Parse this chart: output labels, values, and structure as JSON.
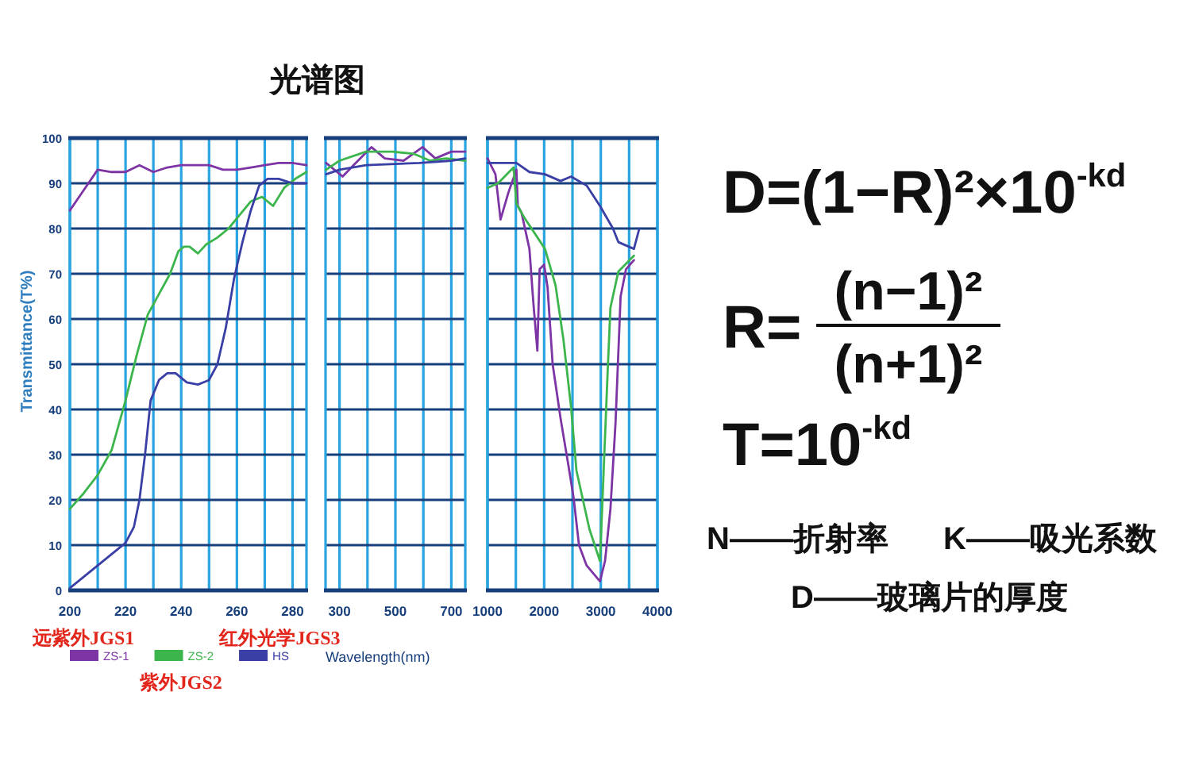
{
  "chart_data": [
    {
      "type": "line",
      "title": "光谱图",
      "ylabel": "Transmittance(T%)",
      "xlim": [
        200,
        285
      ],
      "ylim": [
        0,
        100
      ],
      "xticks": [
        200,
        {
          "value": 210,
          "label": null
        },
        220,
        {
          "value": 230,
          "label": null
        },
        240,
        {
          "value": 250,
          "label": null
        },
        260,
        {
          "value": 270,
          "label": null
        },
        280
      ],
      "yticks": [
        0,
        10,
        20,
        30,
        40,
        50,
        60,
        70,
        80,
        90,
        100
      ],
      "grid": true,
      "legend": "bottom",
      "series": [
        {
          "name": "ZS-1",
          "color": "#7d35a5",
          "x": [
            200,
            205,
            210,
            215,
            220,
            225,
            230,
            235,
            240,
            245,
            250,
            255,
            260,
            265,
            270,
            275,
            280,
            285
          ],
          "values": [
            84,
            88.5,
            93,
            92.5,
            92.5,
            94,
            92.5,
            93.5,
            94,
            94,
            94,
            93,
            93,
            93.5,
            94,
            94.5,
            94.5,
            94
          ]
        },
        {
          "name": "ZS-2",
          "color": "#3cb64c",
          "x": [
            200,
            205,
            210,
            215,
            220,
            224,
            228,
            232,
            236,
            239,
            241,
            243,
            246,
            249,
            253,
            257,
            261,
            265,
            269,
            273,
            277,
            281,
            285
          ],
          "values": [
            18,
            21.5,
            25.5,
            31,
            42,
            52,
            61,
            65.5,
            70,
            75,
            76,
            76,
            74.5,
            76.5,
            78,
            80,
            83,
            86,
            87,
            85,
            89,
            91,
            92.5
          ]
        },
        {
          "name": "HS",
          "color": "#3a3fa5",
          "x": [
            200,
            205,
            210,
            215,
            220,
            223,
            225,
            227,
            229,
            232,
            235,
            238,
            242,
            246,
            250,
            253,
            256,
            259,
            262,
            265,
            268,
            271,
            275,
            280,
            285
          ],
          "values": [
            0.5,
            3,
            5.5,
            8,
            10.5,
            14,
            20,
            30,
            42,
            46.5,
            48,
            48,
            46,
            45.5,
            46.5,
            50,
            58,
            69,
            77,
            84,
            89.5,
            91,
            91,
            90,
            90
          ]
        }
      ],
      "annotations": [
        "远紫外JGS1",
        "紫外JGS2",
        "红外光学JGS3"
      ]
    },
    {
      "type": "line",
      "xlabel": "Wavelength(nm)",
      "xlim": [
        250,
        750
      ],
      "ylim": [
        0,
        100
      ],
      "xticks": [
        300,
        {
          "value": 400,
          "label": null
        },
        500,
        {
          "value": 600,
          "label": null
        },
        700
      ],
      "yticks": [
        0,
        10,
        20,
        30,
        40,
        50,
        60,
        70,
        80,
        90,
        100
      ],
      "tick_labels": "x",
      "grid": true,
      "series": [
        {
          "color": "#7d35a5",
          "x": [
            252,
            311,
            350,
            414,
            462,
            529,
            597,
            643,
            700,
            750
          ],
          "values": [
            94.5,
            91.5,
            94,
            98,
            95.5,
            95,
            98,
            95.5,
            97,
            97
          ]
        },
        {
          "color": "#3cb64c",
          "x": [
            252,
            300,
            395,
            490,
            567,
            624,
            681,
            750
          ],
          "values": [
            93,
            95,
            97,
            97,
            96.5,
            95,
            95.5,
            95
          ]
        },
        {
          "color": "#3a3fa5",
          "x": [
            252,
            300,
            395,
            586,
            700,
            750
          ],
          "values": [
            92,
            93,
            94,
            94.5,
            95,
            95.5
          ]
        }
      ]
    },
    {
      "type": "line",
      "xlim": [
        1000,
        4000
      ],
      "ylim": [
        0,
        100
      ],
      "xticks": [
        1000,
        {
          "value": 1500,
          "label": null
        },
        2000,
        {
          "value": 2500,
          "label": null
        },
        3000,
        {
          "value": 3500,
          "label": null
        },
        4000
      ],
      "yticks": [
        0,
        10,
        20,
        30,
        40,
        50,
        60,
        70,
        80,
        90,
        100
      ],
      "tick_labels": "x",
      "grid": true,
      "series": [
        {
          "color": "#7d35a5",
          "x": [
            1000,
            1140,
            1230,
            1370,
            1510,
            1535,
            1600,
            1740,
            1810,
            1880,
            1920,
            2000,
            2060,
            2150,
            2290,
            2430,
            2520,
            2615,
            2750,
            2985,
            3075,
            3170,
            3260,
            3350,
            3445,
            3585
          ],
          "values": [
            95.5,
            92,
            82,
            88,
            93,
            85,
            83.5,
            75.5,
            63.5,
            53,
            71,
            72,
            67,
            50,
            38,
            27.5,
            20.5,
            10,
            5.5,
            2,
            6.5,
            18,
            37,
            65,
            71,
            73
          ]
        },
        {
          "color": "#3cb64c",
          "x": [
            1000,
            1185,
            1460,
            1510,
            1645,
            2015,
            2200,
            2340,
            2475,
            2570,
            2800,
            2985,
            3030,
            3120,
            3170,
            3310,
            3585
          ],
          "values": [
            89,
            90,
            93.5,
            85.5,
            82.5,
            75.5,
            67.5,
            55.5,
            40.5,
            26.5,
            13.5,
            6.5,
            20,
            48,
            62.5,
            70.5,
            74
          ]
        },
        {
          "color": "#3a3fa5",
          "x": [
            1000,
            1510,
            1740,
            2015,
            2290,
            2475,
            2750,
            2985,
            3215,
            3310,
            3585,
            3680
          ],
          "values": [
            94.5,
            94.5,
            92.5,
            92,
            90.5,
            91.5,
            89.5,
            85,
            80,
            77,
            75.5,
            80
          ]
        }
      ]
    },
    {
      "type": "other",
      "annotations": [
        "D=(1−R)²×10$^{-kd}$",
        "R=",
        "(n−1)²",
        "(n+1)²",
        "T=10$^{-kd}$",
        "N——折射率",
        "K——吸光系数",
        "D——玻璃片的厚度"
      ]
    }
  ]
}
